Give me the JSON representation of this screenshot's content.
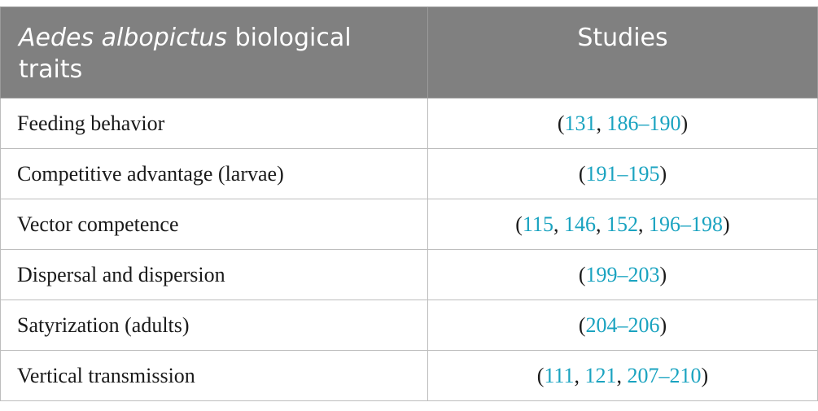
{
  "header": {
    "trait_species": "Aedes albopictus",
    "trait_rest": " biological traits",
    "studies": "Studies"
  },
  "rows": [
    {
      "trait": "Feeding behavior",
      "studies": [
        {
          "t": "(",
          "r": false
        },
        {
          "t": "131",
          "r": true
        },
        {
          "t": ", ",
          "r": false
        },
        {
          "t": "186–190",
          "r": true
        },
        {
          "t": ")",
          "r": false
        }
      ]
    },
    {
      "trait": "Competitive advantage (larvae)",
      "studies": [
        {
          "t": "(",
          "r": false
        },
        {
          "t": "191–195",
          "r": true
        },
        {
          "t": ")",
          "r": false
        }
      ]
    },
    {
      "trait": "Vector competence",
      "studies": [
        {
          "t": "(",
          "r": false
        },
        {
          "t": "115",
          "r": true
        },
        {
          "t": ", ",
          "r": false
        },
        {
          "t": "146",
          "r": true
        },
        {
          "t": ", ",
          "r": false
        },
        {
          "t": "152",
          "r": true
        },
        {
          "t": ", ",
          "r": false
        },
        {
          "t": "196–198",
          "r": true
        },
        {
          "t": ")",
          "r": false
        }
      ]
    },
    {
      "trait": "Dispersal and dispersion",
      "studies": [
        {
          "t": "(",
          "r": false
        },
        {
          "t": "199–203",
          "r": true
        },
        {
          "t": ")",
          "r": false
        }
      ]
    },
    {
      "trait": "Satyrization (adults)",
      "studies": [
        {
          "t": "(",
          "r": false
        },
        {
          "t": "204–206",
          "r": true
        },
        {
          "t": ")",
          "r": false
        }
      ]
    },
    {
      "trait": "Vertical transmission",
      "studies": [
        {
          "t": "(",
          "r": false
        },
        {
          "t": "111",
          "r": true
        },
        {
          "t": ", ",
          "r": false
        },
        {
          "t": "121",
          "r": true
        },
        {
          "t": ", ",
          "r": false
        },
        {
          "t": "207–210",
          "r": true
        },
        {
          "t": ")",
          "r": false
        }
      ]
    }
  ],
  "colors": {
    "header_bg": "#808080",
    "link": "#1aa3c0"
  }
}
